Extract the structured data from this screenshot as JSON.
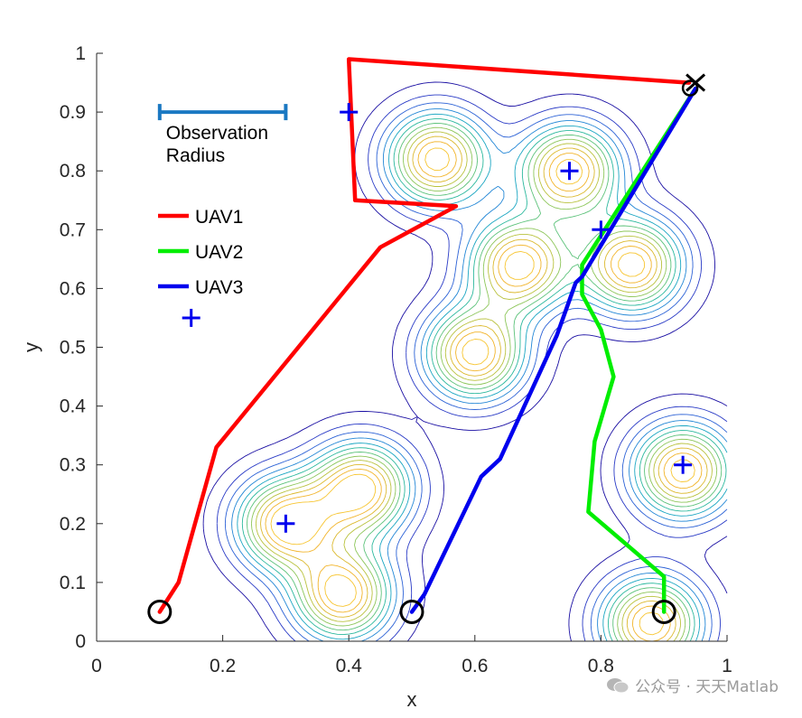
{
  "chart_data": {
    "type": "line",
    "xlabel": "x",
    "ylabel": "y",
    "xlim": [
      0,
      1
    ],
    "ylim": [
      0,
      1
    ],
    "xticks": [
      "0",
      "0.2",
      "0.4",
      "0.6",
      "0.8",
      "1"
    ],
    "yticks": [
      "0",
      "0.1",
      "0.2",
      "0.3",
      "0.4",
      "0.5",
      "0.6",
      "0.7",
      "0.8",
      "0.9",
      "1"
    ],
    "series": [
      {
        "name": "UAV1",
        "color": "#ff0000",
        "x": [
          0.1,
          0.13,
          0.19,
          0.45,
          0.57,
          0.41,
          0.4,
          0.94
        ],
        "y": [
          0.05,
          0.1,
          0.33,
          0.67,
          0.74,
          0.75,
          0.99,
          0.95
        ]
      },
      {
        "name": "UAV2",
        "color": "#00ee00",
        "x": [
          0.9,
          0.9,
          0.78,
          0.79,
          0.82,
          0.8,
          0.77,
          0.77,
          0.95
        ],
        "y": [
          0.05,
          0.11,
          0.22,
          0.34,
          0.45,
          0.53,
          0.59,
          0.64,
          0.94
        ]
      },
      {
        "name": "UAV3",
        "color": "#0000ee",
        "x": [
          0.5,
          0.52,
          0.61,
          0.64,
          0.73,
          0.76,
          0.77,
          0.95
        ],
        "y": [
          0.05,
          0.08,
          0.28,
          0.31,
          0.52,
          0.61,
          0.62,
          0.94
        ]
      }
    ],
    "targets": {
      "marker": "+",
      "color": "#0000ee",
      "points": [
        [
          0.15,
          0.55
        ],
        [
          0.3,
          0.2
        ],
        [
          0.4,
          0.9
        ],
        [
          0.75,
          0.8
        ],
        [
          0.8,
          0.7
        ],
        [
          0.93,
          0.3
        ]
      ]
    },
    "starts": {
      "marker": "circle",
      "points": [
        [
          0.1,
          0.05
        ],
        [
          0.5,
          0.05
        ],
        [
          0.9,
          0.05
        ]
      ]
    },
    "goal": {
      "marker": "x",
      "point": [
        0.95,
        0.95
      ]
    },
    "density_peaks": [
      {
        "x": 0.3,
        "y": 0.2
      },
      {
        "x": 0.42,
        "y": 0.26
      },
      {
        "x": 0.39,
        "y": 0.08
      },
      {
        "x": 0.6,
        "y": 0.49
      },
      {
        "x": 0.54,
        "y": 0.82
      },
      {
        "x": 0.75,
        "y": 0.8
      },
      {
        "x": 0.67,
        "y": 0.64
      },
      {
        "x": 0.85,
        "y": 0.64
      },
      {
        "x": 0.93,
        "y": 0.29
      },
      {
        "x": 0.88,
        "y": 0.03
      }
    ],
    "observation_radius": {
      "label_line1": "Observation",
      "label_line2": "Radius",
      "length": 0.2
    },
    "legend_position": "upper-left",
    "grid": false
  },
  "watermark": "公众号 · 天天Matlab"
}
